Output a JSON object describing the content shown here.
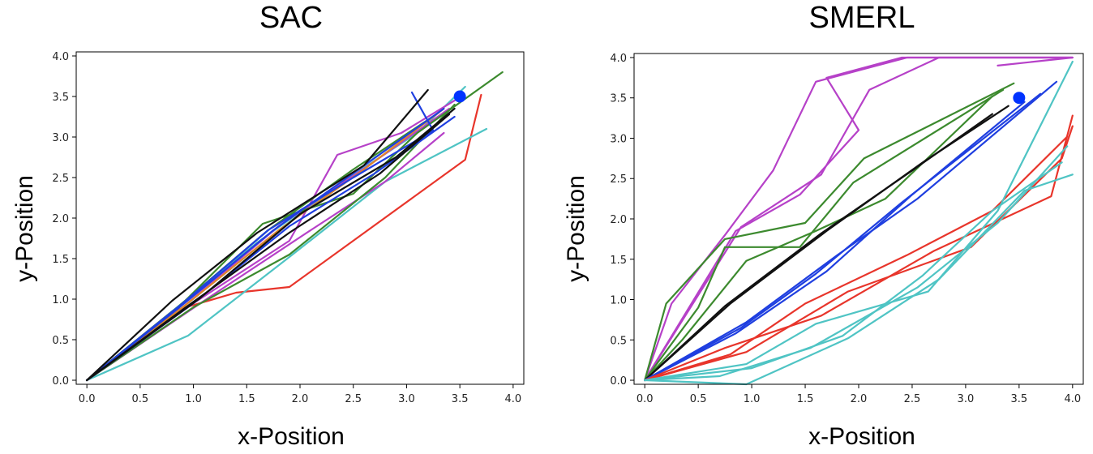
{
  "chart_data": [
    {
      "id": "sac",
      "type": "line",
      "title": "SAC",
      "xlabel": "x-Position",
      "ylabel": "y-Position",
      "xlim": [
        -0.1,
        4.1
      ],
      "ylim": [
        -0.05,
        4.05
      ],
      "xticks": [
        0.0,
        0.5,
        1.0,
        1.5,
        2.0,
        2.5,
        3.0,
        3.5,
        4.0
      ],
      "yticks": [
        0.0,
        0.5,
        1.0,
        1.5,
        2.0,
        2.5,
        3.0,
        3.5,
        4.0
      ],
      "xtick_labels": [
        "0.0",
        "0.5",
        "1.0",
        "1.5",
        "2.0",
        "2.5",
        "3.0",
        "3.5",
        "4.0"
      ],
      "ytick_labels": [
        "0.0",
        "0.5",
        "1.0",
        "1.5",
        "2.0",
        "2.5",
        "3.0",
        "3.5",
        "4.0"
      ],
      "goal": {
        "x": 3.5,
        "y": 3.5,
        "color": "#0033ff"
      },
      "series": [
        {
          "name": "red-1",
          "color": "#e8352b",
          "x": [
            0,
            0.8,
            1.4,
            1.9,
            3.55,
            3.7
          ],
          "y": [
            0,
            0.85,
            1.08,
            1.15,
            2.72,
            3.52
          ]
        },
        {
          "name": "cyan-1",
          "color": "#4fc4c4",
          "x": [
            0,
            0.95,
            1.9,
            2.8,
            3.75
          ],
          "y": [
            0,
            0.55,
            1.52,
            2.45,
            3.1
          ]
        },
        {
          "name": "cyan-2",
          "color": "#4fc4c4",
          "x": [
            0,
            0.8,
            1.6,
            2.4,
            3.1,
            3.55
          ],
          "y": [
            0,
            0.85,
            1.7,
            2.45,
            3.05,
            3.62
          ]
        },
        {
          "name": "cyan-3",
          "color": "#4fc4c4",
          "x": [
            0,
            0.9,
            1.8,
            2.6,
            3.3
          ],
          "y": [
            0,
            0.9,
            1.85,
            2.65,
            3.3
          ]
        },
        {
          "name": "magenta-1",
          "color": "#b641c8",
          "x": [
            0,
            1.0,
            1.9,
            2.35,
            2.95,
            3.45
          ],
          "y": [
            0,
            0.95,
            1.72,
            2.78,
            3.05,
            3.45
          ]
        },
        {
          "name": "magenta-2",
          "color": "#b641c8",
          "x": [
            0,
            1.1,
            2.1,
            2.8,
            3.35
          ],
          "y": [
            0,
            0.98,
            1.85,
            2.45,
            3.05
          ]
        },
        {
          "name": "magenta-3",
          "color": "#b641c8",
          "x": [
            0,
            0.9,
            1.8,
            2.7,
            3.4
          ],
          "y": [
            0,
            0.9,
            1.9,
            2.7,
            3.35
          ]
        },
        {
          "name": "green-1",
          "color": "#3c8a2e",
          "x": [
            0,
            0.9,
            1.65,
            2.5,
            3.1,
            3.9
          ],
          "y": [
            0,
            0.95,
            1.93,
            2.3,
            3.05,
            3.8
          ]
        },
        {
          "name": "green-2",
          "color": "#3c8a2e",
          "x": [
            0,
            1.0,
            1.9,
            2.8,
            3.45
          ],
          "y": [
            0,
            0.9,
            1.55,
            2.5,
            3.4
          ]
        },
        {
          "name": "green-3",
          "color": "#3c8a2e",
          "x": [
            0,
            0.85,
            1.7,
            2.5,
            3.3
          ],
          "y": [
            0,
            0.9,
            1.85,
            2.6,
            3.3
          ]
        },
        {
          "name": "orange-1",
          "color": "#e0862a",
          "x": [
            0,
            0.9,
            1.8,
            2.6,
            3.35
          ],
          "y": [
            0,
            0.9,
            1.85,
            2.6,
            3.35
          ]
        },
        {
          "name": "blue-1",
          "color": "#1f3fe0",
          "x": [
            0,
            0.9,
            1.7,
            2.5,
            3.25,
            3.05
          ],
          "y": [
            0,
            0.95,
            1.85,
            2.5,
            3.08,
            3.55
          ]
        },
        {
          "name": "blue-2",
          "color": "#1f3fe0",
          "x": [
            0,
            1.0,
            1.9,
            2.7,
            3.45
          ],
          "y": [
            0,
            0.95,
            1.9,
            2.55,
            3.25
          ]
        },
        {
          "name": "blue-3",
          "color": "#1f3fe0",
          "x": [
            0,
            0.85,
            1.75,
            2.55,
            3.35
          ],
          "y": [
            0,
            0.88,
            1.85,
            2.6,
            3.35
          ]
        },
        {
          "name": "black-1",
          "color": "#111111",
          "x": [
            0,
            0.8,
            1.6,
            2.6,
            3.2
          ],
          "y": [
            0,
            0.98,
            1.82,
            2.65,
            3.58
          ]
        },
        {
          "name": "black-2",
          "color": "#111111",
          "x": [
            0,
            0.95,
            1.9,
            2.75,
            3.4
          ],
          "y": [
            0,
            0.92,
            1.82,
            2.55,
            3.28
          ]
        },
        {
          "name": "black-3",
          "color": "#111111",
          "x": [
            0,
            1.05,
            2.0,
            2.9,
            3.45
          ],
          "y": [
            0,
            1.0,
            2.05,
            2.75,
            3.35
          ]
        }
      ]
    },
    {
      "id": "smerl",
      "type": "line",
      "title": "SMERL",
      "xlabel": "x-Position",
      "ylabel": "y-Position",
      "xlim": [
        -0.1,
        4.1
      ],
      "ylim": [
        -0.05,
        4.05
      ],
      "xticks": [
        0.0,
        0.5,
        1.0,
        1.5,
        2.0,
        2.5,
        3.0,
        3.5,
        4.0
      ],
      "yticks": [
        0.0,
        0.5,
        1.0,
        1.5,
        2.0,
        2.5,
        3.0,
        3.5,
        4.0
      ],
      "xtick_labels": [
        "0.0",
        "0.5",
        "1.0",
        "1.5",
        "2.0",
        "2.5",
        "3.0",
        "3.5",
        "4.0"
      ],
      "ytick_labels": [
        "0.0",
        "0.5",
        "1.0",
        "1.5",
        "2.0",
        "2.5",
        "3.0",
        "3.5",
        "4.0"
      ],
      "goal": {
        "x": 3.5,
        "y": 3.5,
        "color": "#0033ff"
      },
      "series": [
        {
          "name": "magenta-1",
          "color": "#b641c8",
          "x": [
            0,
            0.25,
            0.75,
            1.2,
            1.6,
            2.45,
            4.0
          ],
          "y": [
            0,
            0.95,
            1.8,
            2.6,
            3.7,
            4.0,
            4.0
          ]
        },
        {
          "name": "magenta-2",
          "color": "#b641c8",
          "x": [
            0,
            0.85,
            1.45,
            2.0,
            1.7,
            2.4,
            4.0
          ],
          "y": [
            0,
            1.85,
            2.3,
            3.1,
            3.75,
            4.0,
            4.0
          ]
        },
        {
          "name": "magenta-3",
          "color": "#b641c8",
          "x": [
            0,
            0.9,
            1.65,
            2.1,
            2.75,
            4.0,
            3.3
          ],
          "y": [
            0,
            1.9,
            2.55,
            3.6,
            4.0,
            4.0,
            3.9
          ]
        },
        {
          "name": "green-1",
          "color": "#3c8a2e",
          "x": [
            0,
            0.2,
            0.75,
            1.5,
            2.05,
            3.45
          ],
          "y": [
            0,
            0.95,
            1.75,
            1.95,
            2.75,
            3.68
          ]
        },
        {
          "name": "green-2",
          "color": "#3c8a2e",
          "x": [
            0,
            0.5,
            0.75,
            1.45,
            1.95,
            3.35
          ],
          "y": [
            0,
            0.9,
            1.65,
            1.65,
            2.45,
            3.6
          ]
        },
        {
          "name": "green-3",
          "color": "#3c8a2e",
          "x": [
            0,
            0.35,
            0.95,
            1.6,
            2.25,
            3.25
          ],
          "y": [
            0,
            0.5,
            1.48,
            1.85,
            2.25,
            3.52
          ]
        },
        {
          "name": "black-1",
          "color": "#111111",
          "x": [
            0,
            0.75,
            1.65,
            2.5,
            3.25
          ],
          "y": [
            0,
            0.92,
            1.82,
            2.6,
            3.3
          ]
        },
        {
          "name": "black-2",
          "color": "#111111",
          "x": [
            0,
            0.8,
            1.7,
            2.6,
            3.4
          ],
          "y": [
            0,
            0.95,
            1.85,
            2.7,
            3.4
          ]
        },
        {
          "name": "blue-1",
          "color": "#1f3fe0",
          "x": [
            0,
            0.95,
            1.8,
            2.55,
            3.85
          ],
          "y": [
            0,
            0.72,
            1.55,
            2.25,
            3.7
          ]
        },
        {
          "name": "blue-2",
          "color": "#1f3fe0",
          "x": [
            0,
            0.9,
            1.6,
            2.4,
            3.7
          ],
          "y": [
            0,
            0.65,
            1.32,
            2.2,
            3.55
          ]
        },
        {
          "name": "blue-3",
          "color": "#1f3fe0",
          "x": [
            0,
            0.85,
            1.7,
            2.5,
            3.55
          ],
          "y": [
            0,
            0.58,
            1.35,
            2.3,
            3.45
          ]
        },
        {
          "name": "red-1",
          "color": "#e8352b",
          "x": [
            0,
            0.8,
            1.5,
            2.45,
            3.25,
            3.95
          ],
          "y": [
            0,
            0.32,
            0.95,
            1.55,
            2.1,
            3.02
          ]
        },
        {
          "name": "red-2",
          "color": "#e8352b",
          "x": [
            0,
            0.75,
            1.65,
            2.7,
            3.8,
            4.0
          ],
          "y": [
            0,
            0.4,
            0.8,
            1.6,
            2.28,
            3.28
          ]
        },
        {
          "name": "red-3",
          "color": "#e8352b",
          "x": [
            0,
            0.95,
            1.9,
            3.05,
            3.9,
            4.0
          ],
          "y": [
            0,
            0.35,
            1.1,
            1.65,
            2.75,
            3.15
          ]
        },
        {
          "name": "cyan-1",
          "color": "#4fc4c4",
          "x": [
            0,
            0.95,
            1.6,
            2.65,
            3.3,
            4.0
          ],
          "y": [
            0,
            0.2,
            0.7,
            1.1,
            2.1,
            3.95
          ]
        },
        {
          "name": "cyan-2",
          "color": "#4fc4c4",
          "x": [
            0,
            0.95,
            1.9,
            2.75,
            3.55,
            4.0
          ],
          "y": [
            0,
            -0.05,
            0.52,
            1.25,
            2.35,
            2.55
          ]
        },
        {
          "name": "cyan-3",
          "color": "#4fc4c4",
          "x": [
            0,
            0.7,
            1.55,
            2.55,
            3.3,
            3.95
          ],
          "y": [
            0,
            0.05,
            0.4,
            1.15,
            1.95,
            2.9
          ]
        },
        {
          "name": "cyan-4",
          "color": "#4fc4c4",
          "x": [
            0,
            1.0,
            1.85,
            2.6,
            3.25,
            3.9
          ],
          "y": [
            0,
            0.15,
            0.55,
            1.3,
            2.1,
            2.7
          ]
        }
      ]
    }
  ]
}
